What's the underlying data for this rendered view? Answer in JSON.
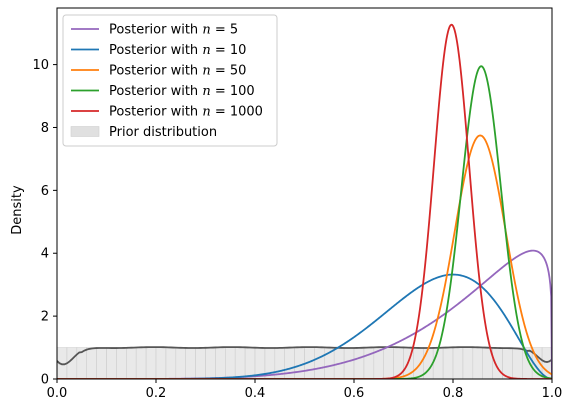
{
  "chart_data": {
    "type": "line",
    "title": "",
    "xlabel": "",
    "ylabel": "Density",
    "xlim": [
      0.0,
      1.0
    ],
    "ylim": [
      0,
      11.8
    ],
    "grid": false,
    "legend_position": "top-left",
    "x_ticks": [
      "0.0",
      "0.2",
      "0.4",
      "0.6",
      "0.8",
      "1.0"
    ],
    "y_ticks": [
      "0",
      "2",
      "4",
      "6",
      "8",
      "10"
    ],
    "series": [
      {
        "name": "Posterior with n = 5",
        "label_prefix": "Posterior with",
        "label_var": "n",
        "label_value": "5",
        "color": "#9467bd",
        "type": "beta",
        "a": 6.0,
        "b": 1.2
      },
      {
        "name": "Posterior with n = 10",
        "label_prefix": "Posterior with",
        "label_var": "n",
        "label_value": "10",
        "color": "#1f77b4",
        "type": "beta",
        "a": 9.0,
        "b": 3.0
      },
      {
        "name": "Posterior with n = 50",
        "label_prefix": "Posterior with",
        "label_var": "n",
        "label_value": "50",
        "color": "#ff7f0e",
        "type": "normal",
        "mean": 0.855,
        "sd": 0.0515
      },
      {
        "name": "Posterior with n = 100",
        "label_prefix": "Posterior with",
        "label_var": "n",
        "label_value": "100",
        "color": "#2ca02c",
        "type": "normal",
        "mean": 0.857,
        "sd": 0.0401
      },
      {
        "name": "Posterior with n = 1000",
        "label_prefix": "Posterior with",
        "label_var": "n",
        "label_value": "1000",
        "color": "#d62728",
        "type": "normal",
        "mean": 0.797,
        "sd": 0.0354
      }
    ],
    "prior": {
      "name": "Prior distribution",
      "fill_color": "#e0e0e0",
      "curve_color": "#555555",
      "density": 1.0
    }
  }
}
